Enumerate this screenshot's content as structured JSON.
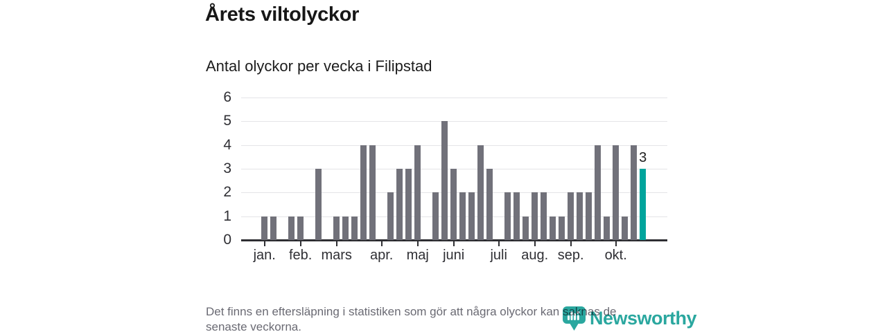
{
  "title": "Årets viltolyckor",
  "subtitle": "Antal olyckor per vecka i Filipstad",
  "footer": {
    "line1": "Det finns en eftersläpning i statistiken som gör att några olyckor kan saknas de",
    "line2": "senaste veckorna."
  },
  "logo": {
    "wordmark": "Newsworthy",
    "icon": "newsworthy-pin-barchart-icon",
    "color": "#2aa79f"
  },
  "chart_data": {
    "type": "bar",
    "title": "Årets viltolyckor",
    "subtitle": "Antal olyckor per vecka i Filipstad",
    "xlabel": "",
    "ylabel": "Antal olyckor per vecka",
    "weeks": [
      1,
      2,
      3,
      4,
      5,
      6,
      7,
      8,
      9,
      10,
      11,
      12,
      13,
      14,
      15,
      16,
      17,
      18,
      19,
      20,
      21,
      22,
      23,
      24,
      25,
      26,
      27,
      28,
      29,
      30,
      31,
      32,
      33,
      34,
      35,
      36,
      37,
      38,
      39,
      40,
      41,
      42,
      43
    ],
    "values": [
      1,
      1,
      0,
      1,
      1,
      0,
      3,
      0,
      1,
      1,
      1,
      4,
      4,
      0,
      2,
      3,
      3,
      4,
      0,
      2,
      5,
      3,
      2,
      2,
      4,
      3,
      0,
      2,
      2,
      1,
      2,
      2,
      1,
      1,
      2,
      2,
      2,
      4,
      1,
      4,
      1,
      4,
      3
    ],
    "highlight": {
      "index": 42,
      "week": 43,
      "value": 3,
      "label": "3",
      "color": "#00a49c"
    },
    "bar_color": "#71717a",
    "ylim": [
      0,
      6
    ],
    "yticks": [
      0,
      1,
      2,
      3,
      4,
      5,
      6
    ],
    "month_ticks": [
      {
        "label": "jan.",
        "week": 1
      },
      {
        "label": "feb.",
        "week": 5
      },
      {
        "label": "mars",
        "week": 9
      },
      {
        "label": "apr.",
        "week": 14
      },
      {
        "label": "maj",
        "week": 18
      },
      {
        "label": "juni",
        "week": 22
      },
      {
        "label": "juli",
        "week": 27
      },
      {
        "label": "aug.",
        "week": 31
      },
      {
        "label": "sep.",
        "week": 35
      },
      {
        "label": "okt.",
        "week": 40
      }
    ],
    "grid": true,
    "grid_color": "#e4e4e7",
    "axis_color": "#2e2e32",
    "legend": "none"
  }
}
